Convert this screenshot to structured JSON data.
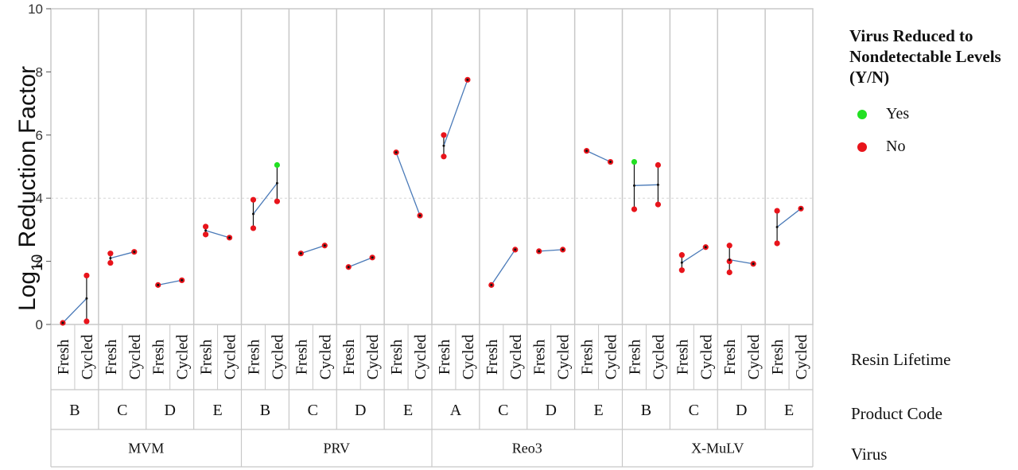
{
  "chart_data": {
    "type": "scatter",
    "ylabel_main": "Log",
    "ylabel_sub": "10",
    "ylabel_rest": " Reduction Factor",
    "ylim": [
      0,
      10
    ],
    "yticks": [
      0,
      2,
      4,
      6,
      8,
      10
    ],
    "reference_line": 4,
    "x_levels": [
      "Resin Lifetime",
      "Product Code",
      "Virus"
    ],
    "lifetimes": [
      "Fresh",
      "Cycled"
    ],
    "legend": {
      "title": "Virus  Reduced to Nondetectable Levels (Y/N)",
      "items": [
        {
          "label": "Yes",
          "color": "#22e022"
        },
        {
          "label": "No",
          "color": "#e8141b"
        }
      ]
    },
    "colors": {
      "yes": "#22e022",
      "no": "#e8141b",
      "mean_line": "#4a7ab8",
      "grid": "#c8c8c8"
    },
    "groups": [
      {
        "virus": "MVM",
        "code": "B",
        "fresh": [
          {
            "v": 0.05,
            "nd": false
          }
        ],
        "cycled": [
          {
            "v": 1.55,
            "nd": false
          },
          {
            "v": 0.1,
            "nd": false
          }
        ]
      },
      {
        "virus": "MVM",
        "code": "C",
        "fresh": [
          {
            "v": 2.25,
            "nd": false
          },
          {
            "v": 1.95,
            "nd": false
          }
        ],
        "cycled": [
          {
            "v": 2.3,
            "nd": false
          }
        ]
      },
      {
        "virus": "MVM",
        "code": "D",
        "fresh": [
          {
            "v": 1.25,
            "nd": false
          }
        ],
        "cycled": [
          {
            "v": 1.4,
            "nd": false
          }
        ]
      },
      {
        "virus": "MVM",
        "code": "E",
        "fresh": [
          {
            "v": 3.1,
            "nd": false
          },
          {
            "v": 2.85,
            "nd": false
          }
        ],
        "cycled": [
          {
            "v": 2.75,
            "nd": false
          }
        ]
      },
      {
        "virus": "PRV",
        "code": "B",
        "fresh": [
          {
            "v": 3.95,
            "nd": false
          },
          {
            "v": 3.05,
            "nd": false
          }
        ],
        "cycled": [
          {
            "v": 5.05,
            "nd": true
          },
          {
            "v": 3.9,
            "nd": false
          }
        ]
      },
      {
        "virus": "PRV",
        "code": "C",
        "fresh": [
          {
            "v": 2.25,
            "nd": false
          }
        ],
        "cycled": [
          {
            "v": 2.5,
            "nd": false
          }
        ]
      },
      {
        "virus": "PRV",
        "code": "D",
        "fresh": [
          {
            "v": 1.82,
            "nd": false
          }
        ],
        "cycled": [
          {
            "v": 2.12,
            "nd": false
          }
        ]
      },
      {
        "virus": "PRV",
        "code": "E",
        "fresh": [
          {
            "v": 5.45,
            "nd": false
          }
        ],
        "cycled": [
          {
            "v": 3.45,
            "nd": false
          }
        ]
      },
      {
        "virus": "Reo3",
        "code": "A",
        "fresh": [
          {
            "v": 6.0,
            "nd": false
          },
          {
            "v": 5.32,
            "nd": false
          }
        ],
        "cycled": [
          {
            "v": 7.75,
            "nd": false
          }
        ]
      },
      {
        "virus": "Reo3",
        "code": "C",
        "fresh": [
          {
            "v": 1.25,
            "nd": false
          }
        ],
        "cycled": [
          {
            "v": 2.37,
            "nd": false
          }
        ]
      },
      {
        "virus": "Reo3",
        "code": "D",
        "fresh": [
          {
            "v": 2.32,
            "nd": false
          }
        ],
        "cycled": [
          {
            "v": 2.37,
            "nd": false
          }
        ]
      },
      {
        "virus": "Reo3",
        "code": "E",
        "fresh": [
          {
            "v": 5.5,
            "nd": false
          }
        ],
        "cycled": [
          {
            "v": 5.15,
            "nd": false
          }
        ]
      },
      {
        "virus": "X-MuLV",
        "code": "B",
        "fresh": [
          {
            "v": 5.15,
            "nd": true
          },
          {
            "v": 3.65,
            "nd": false
          }
        ],
        "cycled": [
          {
            "v": 5.05,
            "nd": false
          },
          {
            "v": 3.8,
            "nd": false
          }
        ]
      },
      {
        "virus": "X-MuLV",
        "code": "C",
        "fresh": [
          {
            "v": 2.2,
            "nd": false
          },
          {
            "v": 1.72,
            "nd": false
          }
        ],
        "cycled": [
          {
            "v": 2.45,
            "nd": false
          }
        ]
      },
      {
        "virus": "X-MuLV",
        "code": "D",
        "fresh": [
          {
            "v": 2.5,
            "nd": false
          },
          {
            "v": 2.0,
            "nd": false
          },
          {
            "v": 1.65,
            "nd": false
          }
        ],
        "cycled": [
          {
            "v": 1.92,
            "nd": false
          }
        ]
      },
      {
        "virus": "X-MuLV",
        "code": "E",
        "fresh": [
          {
            "v": 3.6,
            "nd": false
          },
          {
            "v": 2.57,
            "nd": false
          }
        ],
        "cycled": [
          {
            "v": 3.67,
            "nd": false
          }
        ]
      }
    ],
    "viruses": [
      "MVM",
      "PRV",
      "Reo3",
      "X-MuLV"
    ]
  }
}
